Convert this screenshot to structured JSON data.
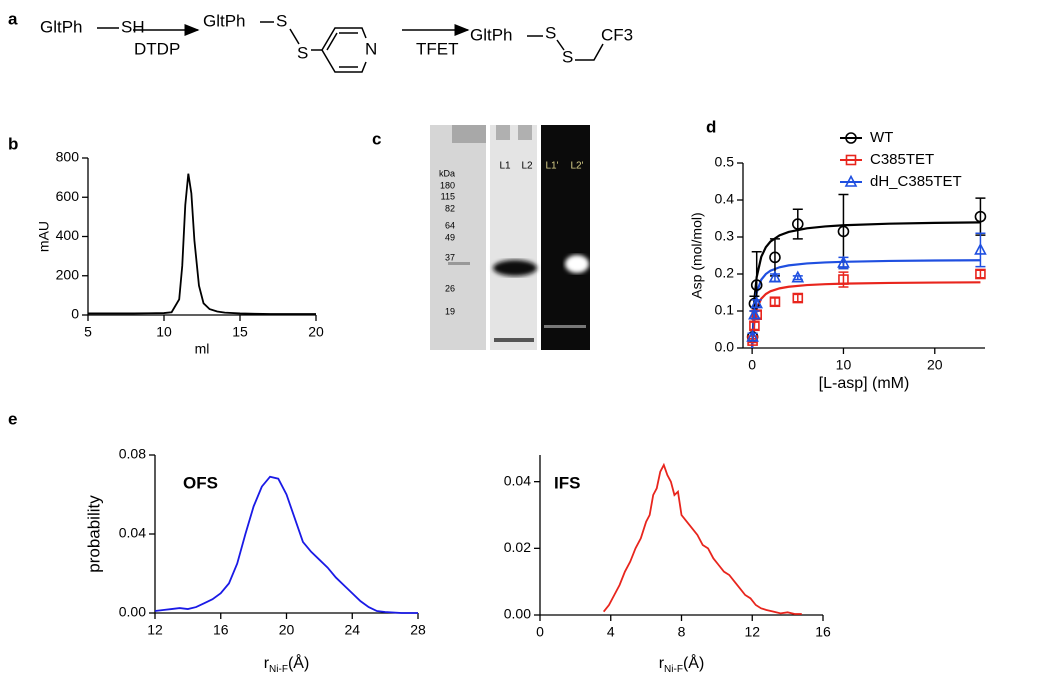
{
  "panel_labels": [
    "a",
    "b",
    "c",
    "d",
    "e"
  ],
  "scheme": {
    "reactant": "GltPh",
    "thiol": "SH",
    "reagent1": "DTDP",
    "intermediate": "GltPh",
    "s1": "S",
    "s2": "S",
    "n": "N",
    "reagent2": "TFET",
    "product": "GltPh",
    "s3": "S",
    "s4": "S",
    "cf3": "CF3"
  },
  "gel": {
    "marker_unit": "kDa",
    "markers": [
      "180",
      "115",
      "82",
      "64",
      "49",
      "37",
      "26",
      "19"
    ],
    "lanes": [
      "L1",
      "L2",
      "L1'",
      "L2'"
    ]
  },
  "chart_data": [
    {
      "type": "line",
      "xlabel": "ml",
      "ylabel": "mAU",
      "color": "#000000",
      "x": [
        5,
        6,
        7,
        8,
        9,
        10,
        10.5,
        11,
        11.2,
        11.4,
        11.6,
        11.8,
        12,
        12.3,
        12.6,
        13,
        13.5,
        14,
        15,
        16,
        17,
        18,
        19,
        20
      ],
      "values": [
        8,
        8,
        8,
        8,
        9,
        10,
        14,
        80,
        250,
        560,
        720,
        620,
        380,
        150,
        60,
        30,
        18,
        12,
        8,
        6,
        5,
        5,
        5,
        5
      ],
      "xlim": [
        5,
        20
      ],
      "xticks": [
        5,
        10,
        15,
        20
      ],
      "ylim": [
        0,
        800
      ],
      "yticks": [
        0,
        200,
        400,
        600,
        800
      ]
    },
    {
      "type": "scatter",
      "xlabel": "[L-asp] (mM)",
      "ylabel": "Asp (mol/mol)",
      "legend": "upper right",
      "x": [
        0.05,
        0.25,
        0.5,
        2.5,
        5,
        10,
        25
      ],
      "fit_x": [
        0,
        0.25,
        0.5,
        1,
        1.5,
        2,
        3,
        4,
        6,
        8,
        10,
        15,
        20,
        25
      ],
      "series": [
        {
          "name": "WT",
          "color": "#000000",
          "marker": "circle",
          "values": [
            0.03,
            0.12,
            0.17,
            0.245,
            0.335,
            0.315,
            0.355
          ],
          "errors": [
            0.01,
            0.02,
            0.09,
            0.05,
            0.04,
            0.1,
            0.05
          ],
          "fit_values": [
            0,
            0.1327,
            0.1917,
            0.2464,
            0.2724,
            0.2875,
            0.3044,
            0.3136,
            0.3234,
            0.3286,
            0.3317,
            0.336,
            0.3382,
            0.3396
          ]
        },
        {
          "name": "C385TET",
          "color": "#e8251d",
          "marker": "square",
          "values": [
            0.02,
            0.06,
            0.09,
            0.125,
            0.135,
            0.185,
            0.2
          ],
          "errors": [
            0.005,
            0.01,
            0.01,
            0.01,
            0.01,
            0.02,
            0.01
          ],
          "fit_values": [
            0,
            0.075,
            0.1059,
            0.1333,
            0.1459,
            0.1532,
            0.1612,
            0.1655,
            0.1701,
            0.1725,
            0.1739,
            0.1759,
            0.1769,
            0.1775
          ]
        },
        {
          "name": "dH_C385TET",
          "color": "#1f4fe0",
          "marker": "triangle",
          "values": [
            0.03,
            0.09,
            0.12,
            0.19,
            0.19,
            0.23,
            0.265
          ],
          "errors": [
            0.01,
            0.01,
            0.01,
            0.01,
            0.005,
            0.015,
            0.045
          ],
          "fit_values": [
            0,
            0.1091,
            0.15,
            0.1846,
            0.2,
            0.2087,
            0.2182,
            0.2233,
            0.2286,
            0.2313,
            0.233,
            0.2353,
            0.2365,
            0.2372
          ]
        }
      ],
      "xlim": [
        -1,
        25.5
      ],
      "xticks": [
        0,
        10,
        20
      ],
      "ylim": [
        0,
        0.5
      ],
      "yticks": [
        {
          "value": 0,
          "label": "0.0"
        },
        0.1,
        0.2,
        0.3,
        0.4,
        0.5
      ]
    },
    {
      "type": "line",
      "title": "OFS",
      "ylabel": "probability",
      "xlabel": "r",
      "xlabel_sub": "Ni-F",
      "xlabel_unit": "(Å)",
      "color": "#1a1ae6",
      "x": [
        12,
        12.5,
        13,
        13.5,
        14,
        14.5,
        15,
        15.5,
        16,
        16.5,
        17,
        17.5,
        18,
        18.5,
        19,
        19.5,
        20,
        20.5,
        21,
        21.5,
        22,
        22.5,
        23,
        23.5,
        24,
        24.5,
        25,
        25.5,
        26,
        27,
        28
      ],
      "values": [
        0.001,
        0.0015,
        0.002,
        0.0025,
        0.002,
        0.003,
        0.005,
        0.007,
        0.01,
        0.015,
        0.025,
        0.04,
        0.054,
        0.064,
        0.069,
        0.068,
        0.06,
        0.048,
        0.036,
        0.031,
        0.027,
        0.023,
        0.018,
        0.014,
        0.01,
        0.006,
        0.003,
        0.001,
        0.0005,
        0,
        0
      ],
      "xlim": [
        12,
        28
      ],
      "xticks": [
        12,
        16,
        20,
        24,
        28
      ],
      "ylim": [
        0,
        0.08
      ],
      "yticks": [
        {
          "value": 0,
          "label": "0.00"
        },
        {
          "value": 0.04,
          "label": "0.04"
        },
        {
          "value": 0.08,
          "label": "0.08"
        }
      ]
    },
    {
      "type": "line",
      "title": "IFS",
      "xlabel": "r",
      "xlabel_sub": "Ni-F",
      "xlabel_unit": "(Å)",
      "color": "#e8251d",
      "x": [
        3.6,
        3.9,
        4.2,
        4.5,
        4.8,
        5.1,
        5.4,
        5.7,
        6.0,
        6.2,
        6.4,
        6.6,
        6.8,
        7.0,
        7.2,
        7.4,
        7.6,
        7.8,
        8.0,
        8.3,
        8.6,
        8.9,
        9.2,
        9.5,
        9.8,
        10.1,
        10.4,
        10.7,
        11.0,
        11.3,
        11.6,
        11.9,
        12.2,
        12.5,
        12.8,
        13.2,
        13.6,
        14.0,
        14.4,
        14.8
      ],
      "values": [
        0.001,
        0.003,
        0.006,
        0.009,
        0.013,
        0.016,
        0.02,
        0.023,
        0.028,
        0.03,
        0.036,
        0.038,
        0.043,
        0.045,
        0.042,
        0.04,
        0.036,
        0.037,
        0.03,
        0.028,
        0.026,
        0.024,
        0.021,
        0.02,
        0.017,
        0.015,
        0.013,
        0.012,
        0.01,
        0.008,
        0.006,
        0.005,
        0.003,
        0.002,
        0.0015,
        0.001,
        0.0005,
        0.0008,
        0.0003,
        0.0003
      ],
      "xlim": [
        0,
        16
      ],
      "xticks": [
        0,
        4,
        8,
        12,
        16
      ],
      "ylim": [
        0,
        0.048
      ],
      "yticks": [
        {
          "value": 0,
          "label": "0.00"
        },
        {
          "value": 0.02,
          "label": "0.02"
        },
        {
          "value": 0.04,
          "label": "0.04"
        }
      ]
    }
  ]
}
